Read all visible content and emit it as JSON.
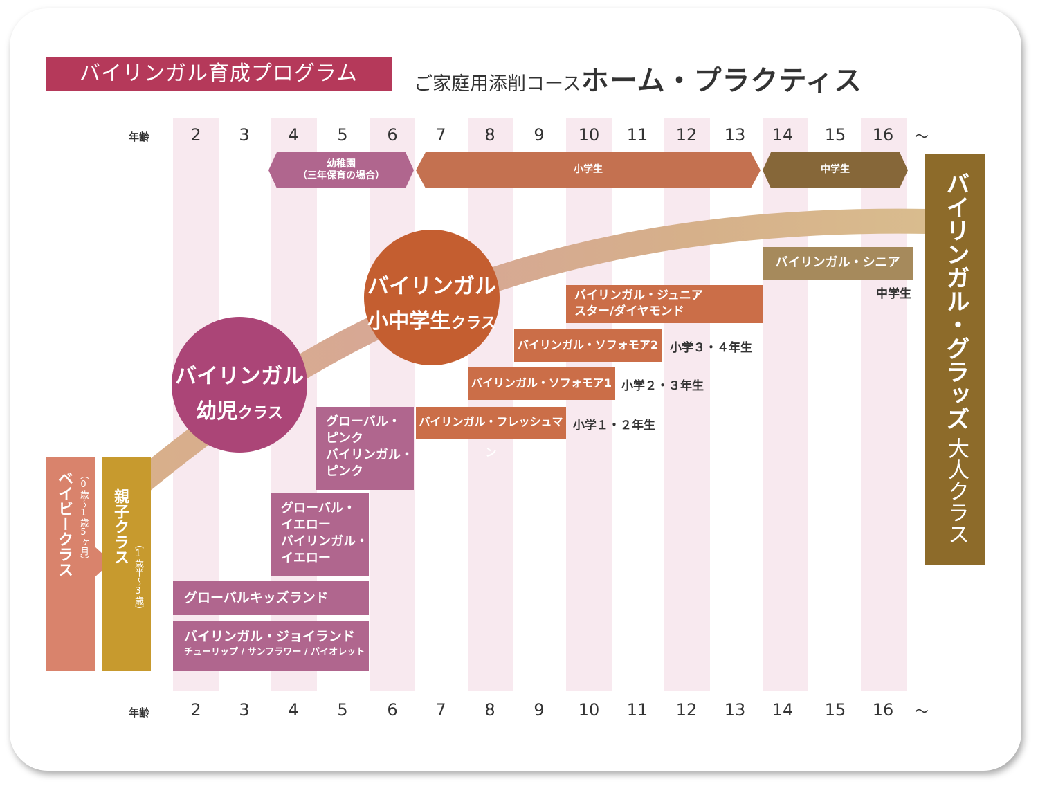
{
  "header": {
    "program_title": "バイリンガル育成プログラム",
    "course_prefix": "ご家庭用添削コース",
    "course_name": "ホーム・プラクティス"
  },
  "age_axis": {
    "label": "年齢",
    "ages": [
      "2",
      "3",
      "4",
      "5",
      "6",
      "7",
      "8",
      "9",
      "10",
      "11",
      "12",
      "13",
      "14",
      "15",
      "16"
    ],
    "tilde": "～"
  },
  "stages": {
    "kindergarten_line1": "幼稚園",
    "kindergarten_line2": "（三年保育の場合）",
    "elementary": "小学生",
    "junior_high": "中学生"
  },
  "circles": {
    "preschool_line1": "バイリンガル",
    "preschool_line2a": "幼児",
    "preschool_line2b": "クラス",
    "school_line1": "バイリンガル",
    "school_line2a": "小中学生",
    "school_line2b": "クラス"
  },
  "vertical_classes": {
    "baby_name": "ベイビークラス",
    "baby_age": "（0歳～1歳5ヶ月）",
    "parent_child_name": "親子クラス",
    "parent_child_age": "（1歳半～3歳）",
    "adult_name": "バイリンガル・グラッズ",
    "adult_sub": "大人クラス"
  },
  "classes": {
    "global_pink": [
      "グローバル・",
      "ピンク",
      "バイリンガル・",
      "ピンク"
    ],
    "global_yellow": [
      "グローバル・",
      "イエロー",
      "バイリンガル・",
      "イエロー"
    ],
    "kidsland": "グローバルキッズランド",
    "joyland_title": "バイリンガル・ジョイランド",
    "joyland_sub": "チューリップ / サンフラワー / バイオレット",
    "freshman": "バイリンガル・フレッシュマン",
    "freshman_note": "小学１・２年生",
    "sophomore1": "バイリンガル・ソフォモア1",
    "sophomore1_note": "小学２・３年生",
    "sophomore2": "バイリンガル・ソフォモア2",
    "sophomore2_note": "小学３・４年生",
    "junior_line1": "バイリンガル・ジュニア",
    "junior_line2": "スター/ダイヤモンド",
    "senior": "バイリンガル・シニア",
    "senior_note": "中学生"
  },
  "colors": {
    "title_red": "#b5395a",
    "stripe_pink": "#f8e9ef",
    "mauve": "#b0668e",
    "magenta_circle": "#ab4577",
    "orange_circle": "#c45e30",
    "orange_bar": "#cb6e48",
    "brown_olive": "#8a6a38",
    "adult_gold": "#8d6b2a",
    "baby_salmon": "#d9836c",
    "parent_gold": "#c79a2e"
  }
}
